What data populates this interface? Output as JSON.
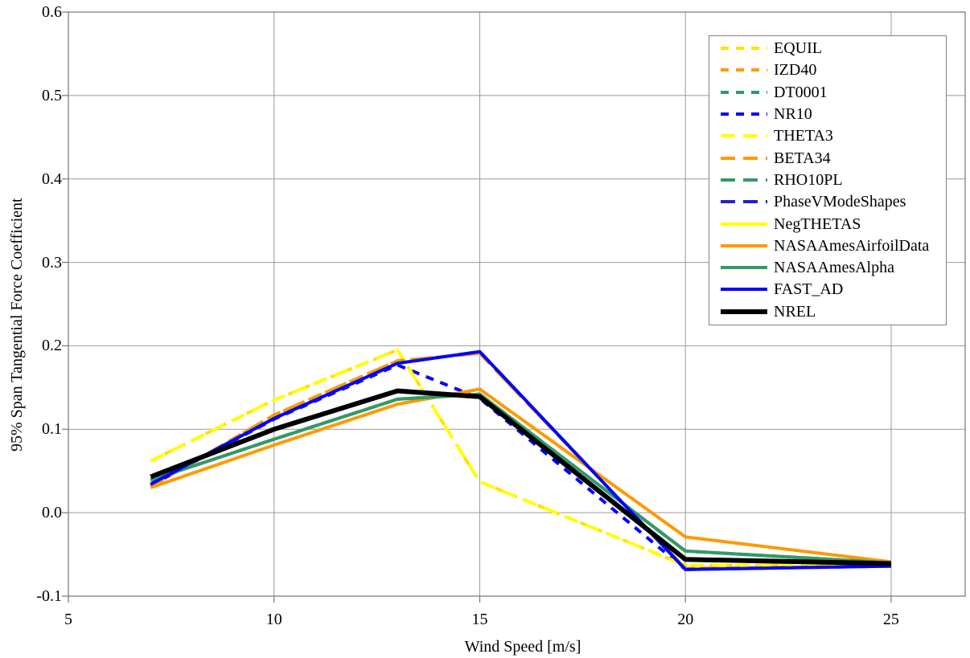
{
  "chart_data": {
    "type": "line",
    "title": "",
    "xlabel": "Wind Speed [m/s]",
    "ylabel": "95% Span Tangential Force Coefficient",
    "xlim": [
      5,
      26.8
    ],
    "ylim": [
      -0.1,
      0.6
    ],
    "grid": true,
    "legend_position": "top-right",
    "x_ticks": [
      5,
      10,
      15,
      20,
      25
    ],
    "x_tick_labels": [
      "5",
      "10",
      "15",
      "20",
      "25"
    ],
    "y_ticks": [
      0.6,
      0.5,
      0.4,
      0.3,
      0.2,
      0.1,
      0.0,
      -0.1
    ],
    "y_tick_labels": [
      "0.6",
      "0.5",
      "0.4",
      "0.3",
      "0.2",
      "0.1",
      "0.0",
      "-0.1"
    ],
    "x": [
      7,
      10,
      13,
      15,
      20,
      25
    ],
    "series": [
      {
        "name": "EQUIL",
        "color": "#FFE100",
        "line_style": "short-dash",
        "line_width": 4,
        "values": [
          0.062,
          0.135,
          0.195,
          0.037,
          -0.063,
          -0.063
        ]
      },
      {
        "name": "IZD40",
        "color": "#FF9900",
        "line_style": "short-dash",
        "line_width": 4,
        "values": [
          0.031,
          0.117,
          0.182,
          0.191,
          -0.067,
          -0.064
        ]
      },
      {
        "name": "DT0001",
        "color": "#339966",
        "line_style": "short-dash",
        "line_width": 4,
        "values": [
          0.039,
          0.088,
          0.136,
          0.142,
          -0.046,
          -0.06
        ]
      },
      {
        "name": "NR10",
        "color": "#0000FF",
        "line_style": "short-dash",
        "line_width": 4,
        "values": [
          0.033,
          0.112,
          0.177,
          0.137,
          -0.068,
          -0.064
        ]
      },
      {
        "name": "THETA3",
        "color": "#FFFF00",
        "line_style": "long-dash",
        "line_width": 4,
        "values": [
          0.062,
          0.135,
          0.195,
          0.037,
          -0.063,
          -0.063
        ]
      },
      {
        "name": "BETA34",
        "color": "#FF9900",
        "line_style": "long-dash",
        "line_width": 4,
        "values": [
          0.031,
          0.117,
          0.182,
          0.191,
          -0.067,
          -0.064
        ]
      },
      {
        "name": "RHO10PL",
        "color": "#339966",
        "line_style": "long-dash",
        "line_width": 4,
        "values": [
          0.039,
          0.088,
          0.136,
          0.142,
          -0.046,
          -0.06
        ]
      },
      {
        "name": "PhaseVModeShapes",
        "color": "#2222CC",
        "line_style": "long-dash",
        "line_width": 4,
        "values": [
          0.034,
          0.113,
          0.179,
          0.193,
          -0.068,
          -0.064
        ]
      },
      {
        "name": "NegTHETAS",
        "color": "#FFFF00",
        "line_style": "solid",
        "line_width": 4,
        "values": [
          0.034,
          0.113,
          0.179,
          0.193,
          -0.068,
          -0.064
        ]
      },
      {
        "name": "NASAAmesAirfoilData",
        "color": "#FF9900",
        "line_style": "solid",
        "line_width": 4,
        "values": [
          0.03,
          0.081,
          0.13,
          0.148,
          -0.029,
          -0.059
        ]
      },
      {
        "name": "NASAAmesAlpha",
        "color": "#339966",
        "line_style": "solid",
        "line_width": 4,
        "values": [
          0.039,
          0.088,
          0.136,
          0.142,
          -0.046,
          -0.06
        ]
      },
      {
        "name": "FAST_AD",
        "color": "#0000FF",
        "line_style": "solid",
        "line_width": 4,
        "values": [
          0.034,
          0.113,
          0.179,
          0.193,
          -0.068,
          -0.064
        ]
      },
      {
        "name": "NREL",
        "color": "#000000",
        "line_style": "solid",
        "line_width": 6,
        "values": [
          0.043,
          0.1,
          0.146,
          0.139,
          -0.056,
          -0.061
        ]
      }
    ]
  },
  "colors": {
    "background": "#FFFFFF",
    "plot_border": "#808080",
    "gridline": "#999999",
    "tick": "#808080",
    "text": "#000000"
  }
}
